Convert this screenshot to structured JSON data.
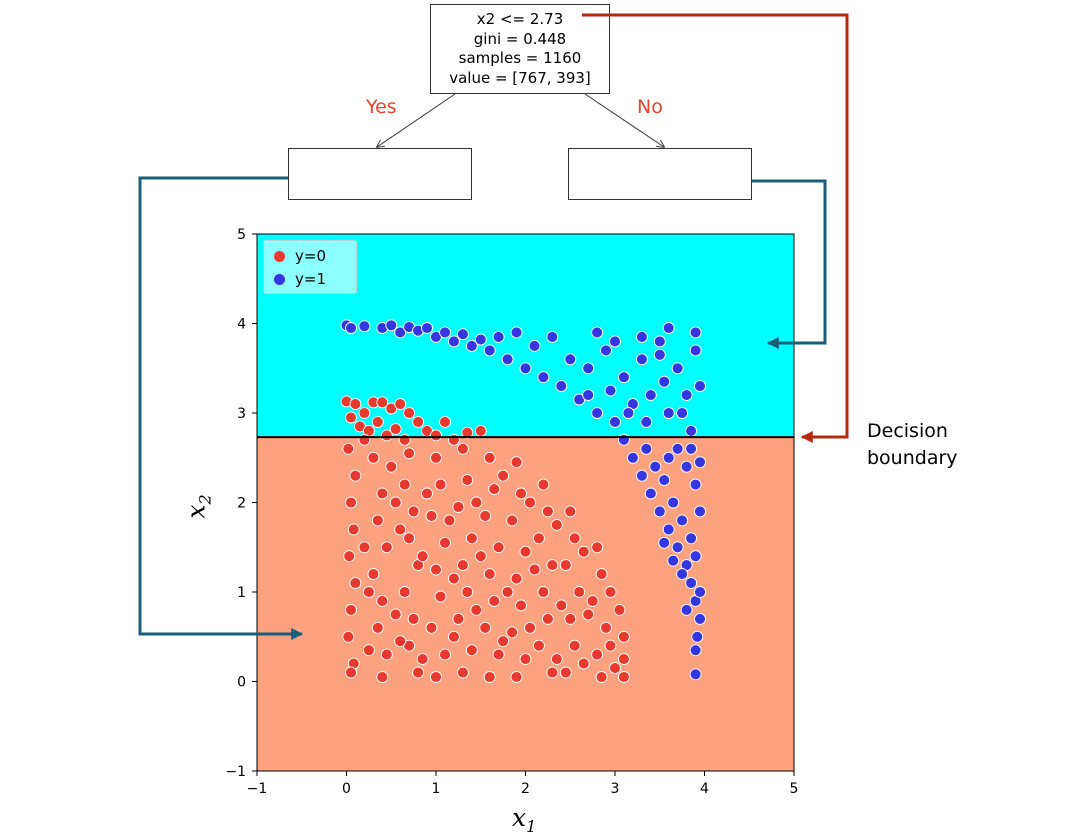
{
  "tree": {
    "root": {
      "line1": "x2 <= 2.73",
      "line2": "gini = 0.448",
      "line3": "samples = 1160",
      "line4": "value = [767, 393]"
    },
    "yes_label": "Yes",
    "no_label": "No"
  },
  "annotation": {
    "line1": "Decision",
    "line2": "boundary"
  },
  "colors": {
    "arrow_red": "#b32a10",
    "arrow_teal": "#1a5f78",
    "region_upper": "#00ffff",
    "region_lower": "#fda27f",
    "class0": "#e8392e",
    "class1": "#3636e0",
    "branch_label": "#e8432e"
  },
  "chart_data": {
    "type": "scatter",
    "title": "",
    "xlabel": "x",
    "xlabel_sub": "1",
    "ylabel": "x",
    "ylabel_sub": "2",
    "xlim": [
      -1,
      5
    ],
    "ylim": [
      -1,
      5
    ],
    "xticks": [
      "−1",
      "0",
      "1",
      "2",
      "3",
      "4",
      "5"
    ],
    "yticks": [
      "−1",
      "0",
      "1",
      "2",
      "3",
      "4",
      "5"
    ],
    "decision_boundary_y": 2.73,
    "legend": [
      {
        "label": "y=0",
        "color": "#e8392e"
      },
      {
        "label": "y=1",
        "color": "#3636e0"
      }
    ],
    "legend_position": "top-left",
    "series": [
      {
        "name": "y=0",
        "description_count": 767,
        "points": [
          [
            0.0,
            3.13
          ],
          [
            0.05,
            2.95
          ],
          [
            0.1,
            3.1
          ],
          [
            0.15,
            2.85
          ],
          [
            0.2,
            3.0
          ],
          [
            0.25,
            2.8
          ],
          [
            0.3,
            3.12
          ],
          [
            0.35,
            2.9
          ],
          [
            0.4,
            3.12
          ],
          [
            0.45,
            2.75
          ],
          [
            0.5,
            3.05
          ],
          [
            0.55,
            2.82
          ],
          [
            0.6,
            3.1
          ],
          [
            0.65,
            2.7
          ],
          [
            0.7,
            3.0
          ],
          [
            0.8,
            2.9
          ],
          [
            0.9,
            2.8
          ],
          [
            1.0,
            2.75
          ],
          [
            1.1,
            2.9
          ],
          [
            1.2,
            2.7
          ],
          [
            1.35,
            2.78
          ],
          [
            1.5,
            2.8
          ],
          [
            0.02,
            2.6
          ],
          [
            0.1,
            2.3
          ],
          [
            0.05,
            2.0
          ],
          [
            0.08,
            1.7
          ],
          [
            0.03,
            1.4
          ],
          [
            0.1,
            1.1
          ],
          [
            0.05,
            0.8
          ],
          [
            0.02,
            0.5
          ],
          [
            0.08,
            0.2
          ],
          [
            0.05,
            0.1
          ],
          [
            0.3,
            2.5
          ],
          [
            0.4,
            2.1
          ],
          [
            0.35,
            1.8
          ],
          [
            0.45,
            1.5
          ],
          [
            0.3,
            1.2
          ],
          [
            0.4,
            0.9
          ],
          [
            0.35,
            0.6
          ],
          [
            0.45,
            0.3
          ],
          [
            0.4,
            0.05
          ],
          [
            0.7,
            2.55
          ],
          [
            0.65,
            2.2
          ],
          [
            0.75,
            1.9
          ],
          [
            0.7,
            1.6
          ],
          [
            0.8,
            1.3
          ],
          [
            0.65,
            1.0
          ],
          [
            0.75,
            0.7
          ],
          [
            0.7,
            0.4
          ],
          [
            0.8,
            0.1
          ],
          [
            1.0,
            2.5
          ],
          [
            1.05,
            2.2
          ],
          [
            0.95,
            1.85
          ],
          [
            1.1,
            1.55
          ],
          [
            1.0,
            1.25
          ],
          [
            1.05,
            0.95
          ],
          [
            0.95,
            0.6
          ],
          [
            1.1,
            0.3
          ],
          [
            1.0,
            0.05
          ],
          [
            1.3,
            2.6
          ],
          [
            1.35,
            2.25
          ],
          [
            1.25,
            1.95
          ],
          [
            1.4,
            1.6
          ],
          [
            1.3,
            1.3
          ],
          [
            1.35,
            1.0
          ],
          [
            1.25,
            0.7
          ],
          [
            1.4,
            0.35
          ],
          [
            1.3,
            0.1
          ],
          [
            1.6,
            2.5
          ],
          [
            1.65,
            2.15
          ],
          [
            1.55,
            1.85
          ],
          [
            1.7,
            1.5
          ],
          [
            1.6,
            1.2
          ],
          [
            1.65,
            0.9
          ],
          [
            1.55,
            0.6
          ],
          [
            1.7,
            0.3
          ],
          [
            1.6,
            0.05
          ],
          [
            1.9,
            2.45
          ],
          [
            1.95,
            2.1
          ],
          [
            1.85,
            1.8
          ],
          [
            2.0,
            1.45
          ],
          [
            1.9,
            1.15
          ],
          [
            1.95,
            0.85
          ],
          [
            1.85,
            0.55
          ],
          [
            2.0,
            0.25
          ],
          [
            1.9,
            0.05
          ],
          [
            2.2,
            2.2
          ],
          [
            2.25,
            1.9
          ],
          [
            2.15,
            1.6
          ],
          [
            2.3,
            1.3
          ],
          [
            2.2,
            1.0
          ],
          [
            2.25,
            0.7
          ],
          [
            2.15,
            0.4
          ],
          [
            2.3,
            0.1
          ],
          [
            2.5,
            1.9
          ],
          [
            2.55,
            1.6
          ],
          [
            2.45,
            1.3
          ],
          [
            2.6,
            1.0
          ],
          [
            2.5,
            0.7
          ],
          [
            2.55,
            0.4
          ],
          [
            2.45,
            0.1
          ],
          [
            2.8,
            1.5
          ],
          [
            2.85,
            1.2
          ],
          [
            2.75,
            0.9
          ],
          [
            2.9,
            0.6
          ],
          [
            2.8,
            0.3
          ],
          [
            2.85,
            0.05
          ],
          [
            3.05,
            0.8
          ],
          [
            3.1,
            0.5
          ],
          [
            3.1,
            0.25
          ],
          [
            3.1,
            0.05
          ],
          [
            0.2,
            2.7
          ],
          [
            0.5,
            2.4
          ],
          [
            0.55,
            2.0
          ],
          [
            0.6,
            1.7
          ],
          [
            0.2,
            1.5
          ],
          [
            0.25,
            1.0
          ],
          [
            0.55,
            0.75
          ],
          [
            0.6,
            0.45
          ],
          [
            0.25,
            0.35
          ],
          [
            0.9,
            2.1
          ],
          [
            0.85,
            1.4
          ],
          [
            1.15,
            1.8
          ],
          [
            1.2,
            1.15
          ],
          [
            0.85,
            0.25
          ],
          [
            1.45,
            2.0
          ],
          [
            1.5,
            1.4
          ],
          [
            1.45,
            0.8
          ],
          [
            1.2,
            0.5
          ],
          [
            1.75,
            2.3
          ],
          [
            1.8,
            1.0
          ],
          [
            1.75,
            0.45
          ],
          [
            2.05,
            2.0
          ],
          [
            2.1,
            1.25
          ],
          [
            2.05,
            0.6
          ],
          [
            2.35,
            1.75
          ],
          [
            2.4,
            0.85
          ],
          [
            2.35,
            0.25
          ],
          [
            2.65,
            1.45
          ],
          [
            2.7,
            0.75
          ],
          [
            2.65,
            0.2
          ],
          [
            2.95,
            1.0
          ],
          [
            2.95,
            0.4
          ],
          [
            3.0,
            0.15
          ]
        ]
      },
      {
        "name": "y=1",
        "description_count": 393,
        "points": [
          [
            0.0,
            3.98
          ],
          [
            0.05,
            3.95
          ],
          [
            0.2,
            3.97
          ],
          [
            0.4,
            3.95
          ],
          [
            0.5,
            3.98
          ],
          [
            0.6,
            3.9
          ],
          [
            0.7,
            3.96
          ],
          [
            0.8,
            3.92
          ],
          [
            0.9,
            3.95
          ],
          [
            1.0,
            3.85
          ],
          [
            1.1,
            3.9
          ],
          [
            1.2,
            3.8
          ],
          [
            1.3,
            3.88
          ],
          [
            1.4,
            3.75
          ],
          [
            1.5,
            3.82
          ],
          [
            1.6,
            3.7
          ],
          [
            1.7,
            3.85
          ],
          [
            1.8,
            3.6
          ],
          [
            1.9,
            3.9
          ],
          [
            2.0,
            3.5
          ],
          [
            2.1,
            3.75
          ],
          [
            2.2,
            3.4
          ],
          [
            2.3,
            3.85
          ],
          [
            2.4,
            3.3
          ],
          [
            2.5,
            3.6
          ],
          [
            2.6,
            3.15
          ],
          [
            2.7,
            3.5
          ],
          [
            2.8,
            3.0
          ],
          [
            2.9,
            3.7
          ],
          [
            3.0,
            2.9
          ],
          [
            3.1,
            3.4
          ],
          [
            3.2,
            3.1
          ],
          [
            3.3,
            3.6
          ],
          [
            3.4,
            3.2
          ],
          [
            3.5,
            3.8
          ],
          [
            3.6,
            3.0
          ],
          [
            3.7,
            3.5
          ],
          [
            3.8,
            3.2
          ],
          [
            3.9,
            3.7
          ],
          [
            3.95,
            3.3
          ],
          [
            3.9,
            3.9
          ],
          [
            3.6,
            3.95
          ],
          [
            3.5,
            3.65
          ],
          [
            3.3,
            3.85
          ],
          [
            3.0,
            3.8
          ],
          [
            2.8,
            3.9
          ],
          [
            2.7,
            3.2
          ],
          [
            2.95,
            3.25
          ],
          [
            3.15,
            3.0
          ],
          [
            3.35,
            2.9
          ],
          [
            3.55,
            3.35
          ],
          [
            3.75,
            3.0
          ],
          [
            3.85,
            2.8
          ],
          [
            3.1,
            2.7
          ],
          [
            3.2,
            2.5
          ],
          [
            3.3,
            2.3
          ],
          [
            3.4,
            2.1
          ],
          [
            3.5,
            1.9
          ],
          [
            3.6,
            1.7
          ],
          [
            3.7,
            1.5
          ],
          [
            3.8,
            1.3
          ],
          [
            3.85,
            1.1
          ],
          [
            3.9,
            0.9
          ],
          [
            3.95,
            0.7
          ],
          [
            3.92,
            0.5
          ],
          [
            3.9,
            0.35
          ],
          [
            3.9,
            0.08
          ],
          [
            3.35,
            2.6
          ],
          [
            3.45,
            2.4
          ],
          [
            3.55,
            2.25
          ],
          [
            3.65,
            2.0
          ],
          [
            3.75,
            1.8
          ],
          [
            3.85,
            1.6
          ],
          [
            3.8,
            2.4
          ],
          [
            3.7,
            2.6
          ],
          [
            3.9,
            2.2
          ],
          [
            3.95,
            1.9
          ],
          [
            3.6,
            2.5
          ],
          [
            3.55,
            1.55
          ],
          [
            3.75,
            1.2
          ],
          [
            3.9,
            1.4
          ],
          [
            3.85,
            2.6
          ],
          [
            3.95,
            2.45
          ],
          [
            3.65,
            1.35
          ],
          [
            3.8,
            0.8
          ],
          [
            3.95,
            1.0
          ]
        ]
      }
    ]
  }
}
